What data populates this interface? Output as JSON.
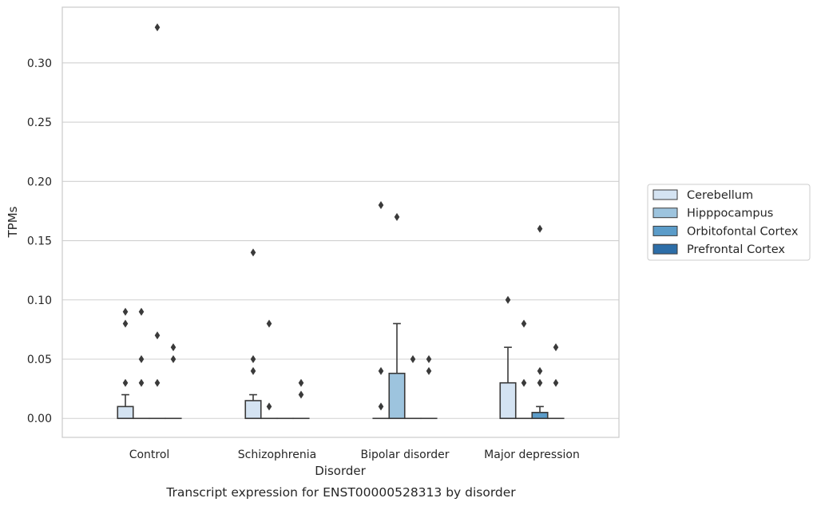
{
  "chart_data": {
    "type": "box",
    "title": "",
    "caption": "Transcript expression for ENST00000528313 by disorder",
    "xlabel": "Disorder",
    "ylabel": "TPMs",
    "ylim": [
      -0.016,
      0.347
    ],
    "yticks": [
      "0.00",
      "0.05",
      "0.10",
      "0.15",
      "0.20",
      "0.25",
      "0.30"
    ],
    "ytick_values": [
      0,
      0.05,
      0.1,
      0.15,
      0.2,
      0.25,
      0.3
    ],
    "grid": "horizontal",
    "legend_position": "right",
    "categories": [
      "Control",
      "Schizophrenia",
      "Bipolar disorder",
      "Major depression"
    ],
    "series": [
      {
        "name": "Cerebellum",
        "color": "#d4e3f2",
        "boxes": [
          {
            "q1": 0,
            "median": 0,
            "q3": 0.01,
            "whisker_low": 0,
            "whisker_high": 0.02,
            "outliers": [
              0.03,
              0.08,
              0.09
            ]
          },
          {
            "q1": 0,
            "median": 0,
            "q3": 0.015,
            "whisker_low": 0,
            "whisker_high": 0.02,
            "outliers": [
              0.04,
              0.05,
              0.14
            ]
          },
          {
            "q1": 0,
            "median": 0,
            "q3": 0,
            "whisker_low": 0,
            "whisker_high": 0,
            "outliers": [
              0.01,
              0.04,
              0.18
            ]
          },
          {
            "q1": 0,
            "median": 0,
            "q3": 0.03,
            "whisker_low": 0,
            "whisker_high": 0.06,
            "outliers": [
              0.1
            ]
          }
        ]
      },
      {
        "name": "Hipppocampus",
        "color": "#9dc4de",
        "boxes": [
          {
            "q1": 0,
            "median": 0,
            "q3": 0,
            "whisker_low": 0,
            "whisker_high": 0,
            "outliers": [
              0.03,
              0.05,
              0.09
            ]
          },
          {
            "q1": 0,
            "median": 0,
            "q3": 0,
            "whisker_low": 0,
            "whisker_high": 0,
            "outliers": [
              0.01,
              0.08
            ]
          },
          {
            "q1": 0,
            "median": 0,
            "q3": 0.038,
            "whisker_low": 0,
            "whisker_high": 0.08,
            "outliers": [
              0.17
            ]
          },
          {
            "q1": 0,
            "median": 0,
            "q3": 0,
            "whisker_low": 0,
            "whisker_high": 0,
            "outliers": [
              0.03,
              0.08
            ]
          }
        ]
      },
      {
        "name": "Orbitofontal Cortex",
        "color": "#5b9cc9",
        "boxes": [
          {
            "q1": 0,
            "median": 0,
            "q3": 0,
            "whisker_low": 0,
            "whisker_high": 0,
            "outliers": [
              0.03,
              0.07,
              0.33
            ]
          },
          {
            "q1": 0,
            "median": 0,
            "q3": 0,
            "whisker_low": 0,
            "whisker_high": 0,
            "outliers": []
          },
          {
            "q1": 0,
            "median": 0,
            "q3": 0,
            "whisker_low": 0,
            "whisker_high": 0,
            "outliers": [
              0.05
            ]
          },
          {
            "q1": 0,
            "median": 0,
            "q3": 0.005,
            "whisker_low": 0,
            "whisker_high": 0.01,
            "outliers": [
              0.03,
              0.04,
              0.16
            ]
          }
        ]
      },
      {
        "name": "Prefrontal Cortex",
        "color": "#2d6ea8",
        "boxes": [
          {
            "q1": 0,
            "median": 0,
            "q3": 0,
            "whisker_low": 0,
            "whisker_high": 0,
            "outliers": [
              0.05,
              0.06
            ]
          },
          {
            "q1": 0,
            "median": 0,
            "q3": 0,
            "whisker_low": 0,
            "whisker_high": 0,
            "outliers": [
              0.02,
              0.03
            ]
          },
          {
            "q1": 0,
            "median": 0,
            "q3": 0,
            "whisker_low": 0,
            "whisker_high": 0,
            "outliers": [
              0.04,
              0.05
            ]
          },
          {
            "q1": 0,
            "median": 0,
            "q3": 0,
            "whisker_low": 0,
            "whisker_high": 0,
            "outliers": [
              0.03,
              0.06
            ]
          }
        ]
      }
    ]
  }
}
